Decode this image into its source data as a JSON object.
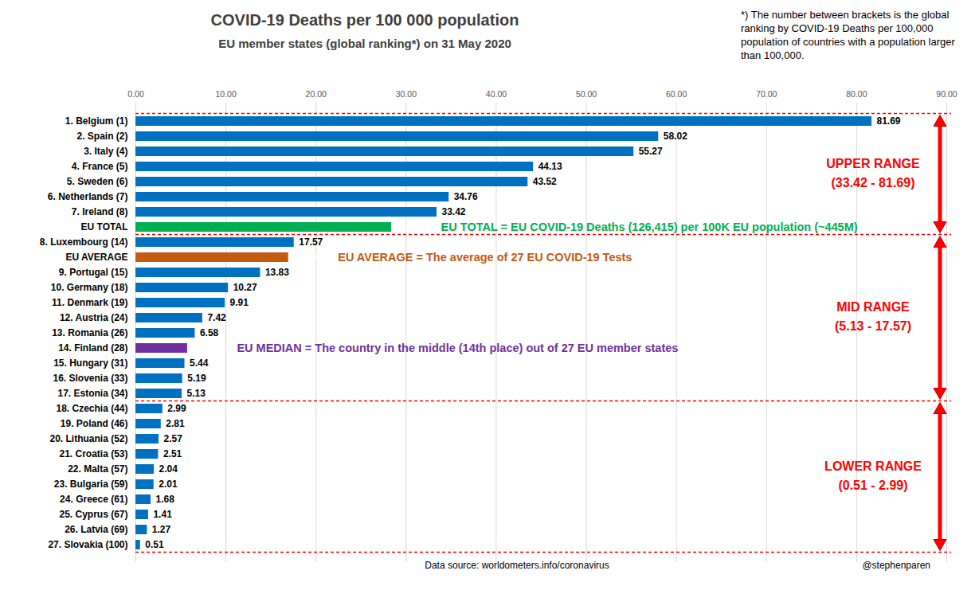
{
  "chart_data": {
    "type": "bar",
    "orientation": "horizontal",
    "title": "COVID-19 Deaths per 100 000 population",
    "subtitle": "EU member states (global ranking*) on 31 May 2020",
    "footnote": "*) The number between brackets is the global ranking by COVID-19 Deaths per 100,000  population of countries with a population larger than 100,000.",
    "source": "Data source: worldometers.info/coronavirus",
    "credit": "@stephenparen",
    "categories": [
      "1. Belgium (1)",
      "2. Spain (2)",
      "3. Italy (4)",
      "4. France (5)",
      "5. Sweden (6)",
      "6. Netherlands (7)",
      "7. Ireland (8)",
      "EU TOTAL",
      "8. Luxembourg (14)",
      "EU AVERAGE",
      "9. Portugal (15)",
      "10. Germany (18)",
      "11. Denmark (19)",
      "12. Austria (24)",
      "13. Romania (26)",
      "14. Finland (28)",
      "15. Hungary (31)",
      "16. Slovenia (33)",
      "17. Estonia (34)",
      "18. Czechia (44)",
      "19. Poland (46)",
      "20. Lithuania (52)",
      "21. Croatia (53)",
      "22. Malta (57)",
      "23. Bulgaria (59)",
      "24. Greece (61)",
      "25. Cyprus (67)",
      "26. Latvia (69)",
      "27. Slovakia (100)"
    ],
    "values": [
      81.69,
      58.02,
      55.27,
      44.13,
      43.52,
      34.76,
      33.42,
      28.39,
      17.57,
      16.95,
      13.83,
      10.27,
      9.91,
      7.42,
      6.58,
      5.74,
      5.44,
      5.19,
      5.13,
      2.99,
      2.81,
      2.57,
      2.51,
      2.04,
      2.01,
      1.68,
      1.41,
      1.27,
      0.51
    ],
    "colors": [
      "#0070C0",
      "#0070C0",
      "#0070C0",
      "#0070C0",
      "#0070C0",
      "#0070C0",
      "#0070C0",
      "#00B050",
      "#0070C0",
      "#C55A11",
      "#0070C0",
      "#0070C0",
      "#0070C0",
      "#0070C0",
      "#0070C0",
      "#7030A0",
      "#0070C0",
      "#0070C0",
      "#0070C0",
      "#0070C0",
      "#0070C0",
      "#0070C0",
      "#0070C0",
      "#0070C0",
      "#0070C0",
      "#0070C0",
      "#0070C0",
      "#0070C0",
      "#0070C0"
    ],
    "xlim": [
      0,
      90
    ],
    "xticks": [
      {
        "value": 0,
        "label": "0.00"
      },
      {
        "value": 10,
        "label": "10.00"
      },
      {
        "value": 20,
        "label": "20.00"
      },
      {
        "value": 30,
        "label": "30.00"
      },
      {
        "value": 40,
        "label": "40.00"
      },
      {
        "value": 50,
        "label": "50.00"
      },
      {
        "value": 60,
        "label": "60.00"
      },
      {
        "value": 70,
        "label": "70.00"
      },
      {
        "value": 80,
        "label": "80.00"
      },
      {
        "value": 90,
        "label": "90.00"
      }
    ],
    "grid": true,
    "data_labels": true,
    "annotations": [
      {
        "category": "EU TOTAL",
        "text": "EU TOTAL = EU COVID-19 Deaths (126,415) per 100K EU population (~445M)"
      },
      {
        "category": "EU AVERAGE",
        "text": "EU AVERAGE = The average of 27 EU COVID-19 Tests"
      },
      {
        "category": "14. Finland (28)",
        "text": "EU MEDIAN = The country in the middle (14th place) out of 27 EU member states"
      }
    ],
    "ranges": [
      {
        "label": "UPPER RANGE",
        "text": "(33.42 - 81.69)",
        "from": "1. Belgium (1)",
        "to": "EU TOTAL"
      },
      {
        "label": "MID RANGE",
        "text": "(5.13 - 17.57)",
        "from": "8. Luxembourg (14)",
        "to": "17. Estonia (34)"
      },
      {
        "label": "LOWER RANGE",
        "text": "(0.51 - 2.99)",
        "from": "18. Czechia (44)",
        "to": "27. Slovakia (100)"
      }
    ]
  }
}
